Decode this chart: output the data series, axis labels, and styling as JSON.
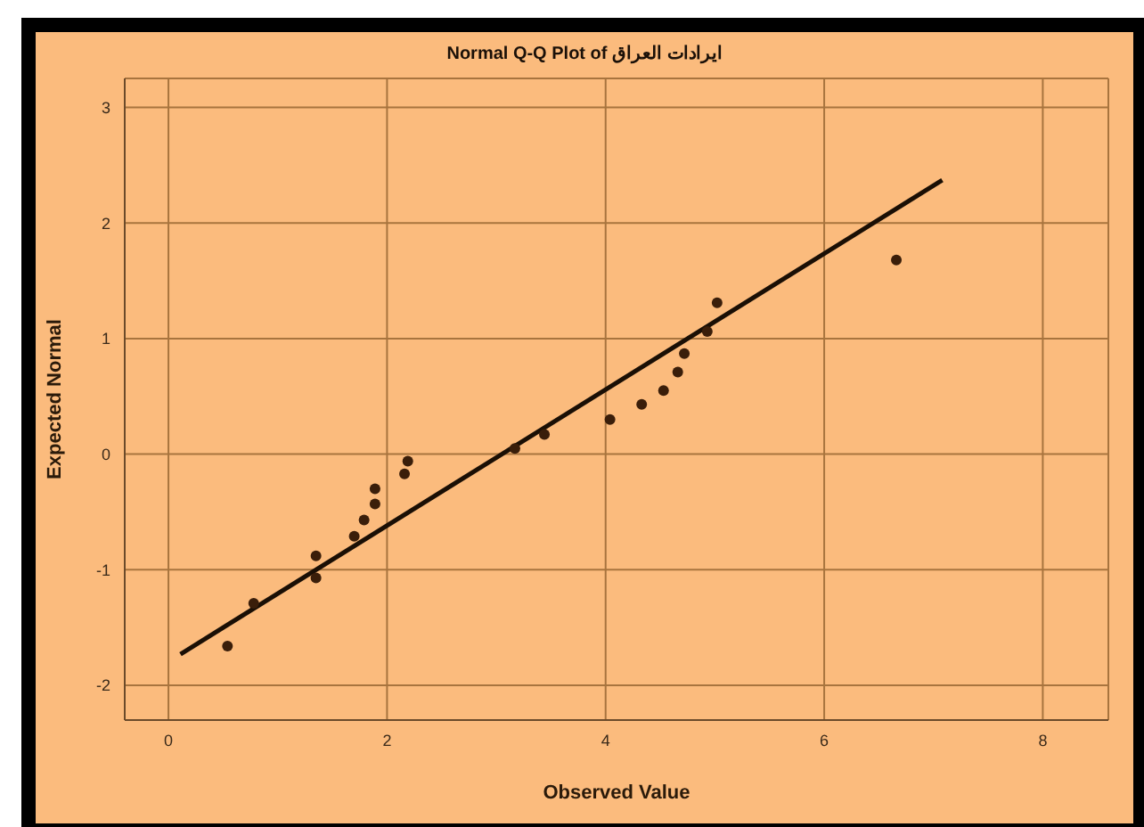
{
  "chart_data": {
    "type": "scatter",
    "title": "Normal Q-Q Plot of ايرادات العراق",
    "xlabel": "Observed Value",
    "ylabel": "Expected Normal",
    "series": [
      {
        "color": "#3a1e0a",
        "marker": "circle",
        "x": [
          0.54,
          0.78,
          1.35,
          1.35,
          1.7,
          1.79,
          1.89,
          1.89,
          2.16,
          2.19,
          3.17,
          3.44,
          4.04,
          4.33,
          4.53,
          4.66,
          4.72,
          4.93,
          5.02,
          6.66
        ],
        "values": [
          -1.66,
          -1.29,
          -1.07,
          -0.88,
          -0.71,
          -0.57,
          -0.43,
          -0.3,
          -0.17,
          -0.06,
          0.05,
          0.17,
          0.3,
          0.43,
          0.55,
          0.71,
          0.87,
          1.06,
          1.31,
          1.68
        ]
      },
      {
        "type": "line",
        "color": "#1a0f05",
        "marker": "none",
        "x": [
          0.11,
          7.08
        ],
        "values": [
          -1.73,
          2.37
        ]
      }
    ],
    "xlim": [
      -0.4,
      8.6
    ],
    "xticks": [
      0,
      2,
      4,
      6,
      8
    ],
    "ylim": [
      -2.3,
      3.25
    ],
    "yticks": [
      -2,
      -1,
      0,
      1,
      2,
      3
    ],
    "grid": true,
    "legend": false
  }
}
